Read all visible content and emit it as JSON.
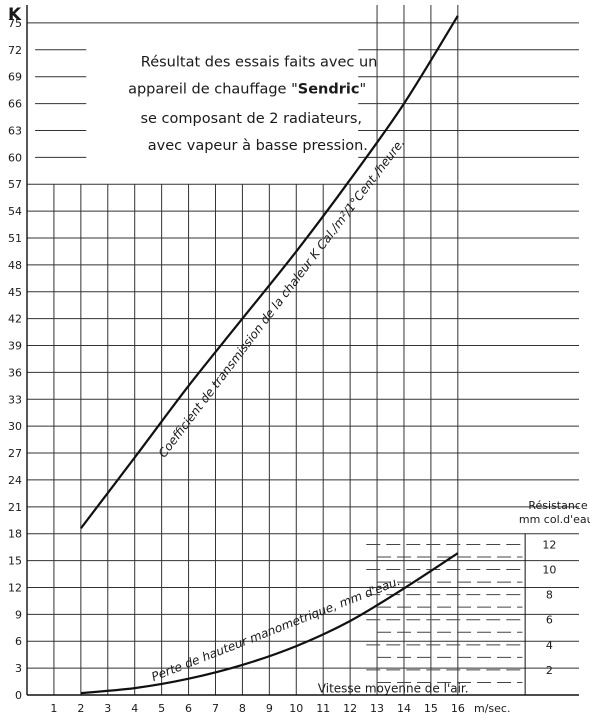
{
  "chart_data": {
    "type": "line",
    "y_axis_label": "K",
    "y2_axis_title": [
      "Résistance",
      "mm col.d'eau."
    ],
    "x_unit": "m/sec.",
    "x_label": "Vitesse moyenne de l'air.",
    "x_ticks": [
      "1",
      "2",
      "3",
      "4",
      "5",
      "6",
      "7",
      "8",
      "9",
      "10",
      "11",
      "12",
      "13",
      "14",
      "15",
      "16"
    ],
    "y_ticks": [
      "0",
      "3",
      "6",
      "9",
      "12",
      "15",
      "18",
      "21",
      "24",
      "27",
      "30",
      "33",
      "36",
      "39",
      "42",
      "45",
      "48",
      "51",
      "54",
      "57",
      "60",
      "63",
      "66",
      "69",
      "72",
      "75"
    ],
    "y2_ticks": [
      "2",
      "4",
      "6",
      "8",
      "10",
      "12"
    ],
    "xlim": [
      0,
      20.5
    ],
    "ylim": [
      0,
      77
    ],
    "y2lim": [
      0,
      12
    ],
    "grid": true,
    "annotation": [
      "Résultat des essais faits avec un",
      "appareil de chauffage \"Sendric\"",
      "se composant de 2 radiateurs,",
      "avec vapeur à basse pression."
    ],
    "series": [
      {
        "name": "Coefficient de transmission de la chaleur K Cal./m²/1°Cent./heure.",
        "axis": "K",
        "x": [
          2,
          4,
          6,
          8,
          10,
          12,
          14,
          16
        ],
        "values": [
          18.6,
          26.5,
          34.5,
          42.0,
          49.5,
          57.5,
          66.0,
          75.8
        ]
      },
      {
        "name": "Perte de hauteur manometrique, mm d'eau.",
        "axis": "Résistance",
        "x": [
          2,
          4,
          6,
          8,
          10,
          12,
          14,
          16
        ],
        "values": [
          0.15,
          0.55,
          1.3,
          2.4,
          3.9,
          5.9,
          8.5,
          11.3
        ]
      }
    ]
  }
}
